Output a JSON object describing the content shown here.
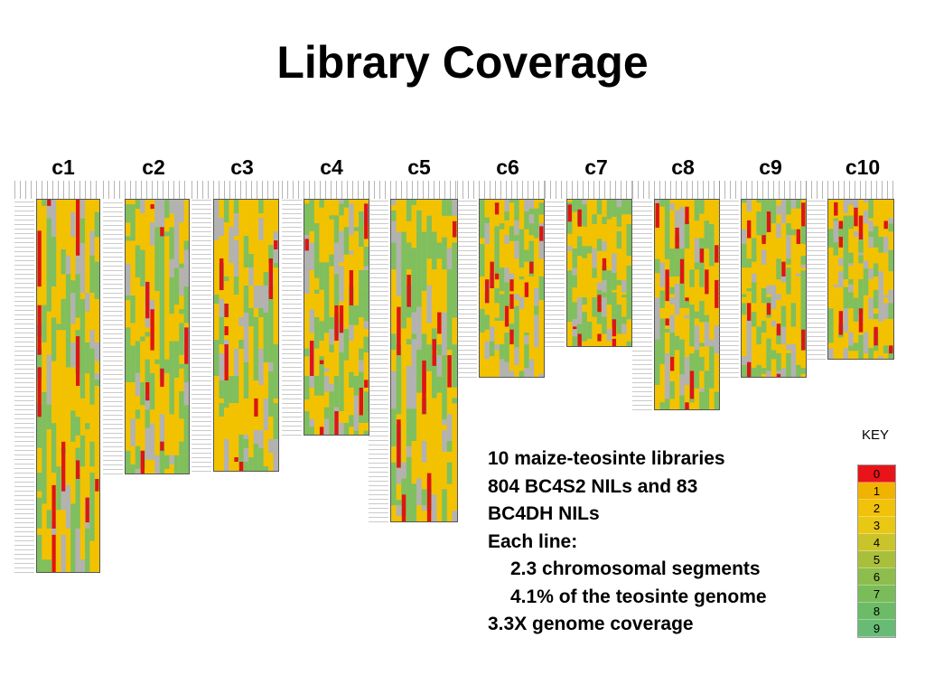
{
  "title": "Library Coverage",
  "colors": {
    "red": "#dd1515",
    "yellow": "#f2c200",
    "green": "#7fbf5f",
    "gray": "#b2b2b2",
    "key": [
      "#e8141a",
      "#f0b400",
      "#f0c20a",
      "#e8c814",
      "#c9c32c",
      "#a8bf3c",
      "#8dbd4c",
      "#7abc5a",
      "#6cbb66",
      "#68bb74"
    ]
  },
  "chromosomes": [
    {
      "label": "c1"
    },
    {
      "label": "c2"
    },
    {
      "label": "c3"
    },
    {
      "label": "c4"
    },
    {
      "label": "c5"
    },
    {
      "label": "c6"
    },
    {
      "label": "c7"
    },
    {
      "label": "c8"
    },
    {
      "label": "c9"
    },
    {
      "label": "c10"
    }
  ],
  "description": {
    "lines": [
      "10 maize-teosinte libraries",
      "804 BC4S2 NILs and 83",
      "BC4DH NILs",
      "Each line:",
      "2.3 chromosomal segments",
      "4.1% of the teosinte genome",
      "3.3X genome coverage"
    ]
  },
  "key": {
    "title": "KEY",
    "values": [
      "0",
      "1",
      "2",
      "3",
      "4",
      "5",
      "6",
      "7",
      "8",
      "9"
    ]
  }
}
